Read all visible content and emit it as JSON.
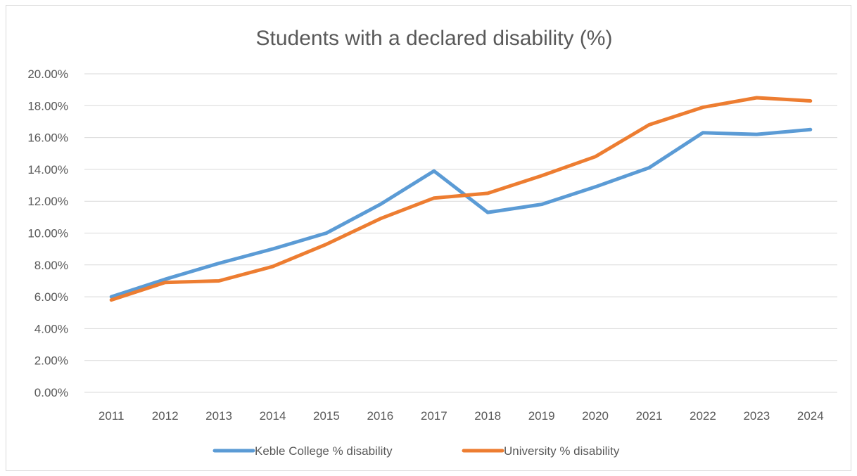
{
  "chart_data": {
    "type": "line",
    "title": "Students with a declared disability (%)",
    "xlabel": "",
    "ylabel": "",
    "categories": [
      "2011",
      "2012",
      "2013",
      "2014",
      "2015",
      "2016",
      "2017",
      "2018",
      "2019",
      "2020",
      "2021",
      "2022",
      "2023",
      "2024"
    ],
    "ylim": [
      0,
      20
    ],
    "yticks": [
      "0.00%",
      "2.00%",
      "4.00%",
      "6.00%",
      "8.00%",
      "10.00%",
      "12.00%",
      "14.00%",
      "16.00%",
      "18.00%",
      "20.00%"
    ],
    "grid": true,
    "legend_position": "bottom",
    "series": [
      {
        "name": "Keble College % disability",
        "color": "#5b9bd5",
        "values": [
          6.0,
          7.1,
          8.1,
          9.0,
          10.0,
          11.8,
          13.9,
          11.3,
          11.8,
          12.9,
          14.1,
          16.3,
          16.2,
          16.5
        ]
      },
      {
        "name": "University % disability",
        "color": "#ed7d31",
        "values": [
          5.8,
          6.9,
          7.0,
          7.9,
          9.3,
          10.9,
          12.2,
          12.5,
          13.6,
          14.8,
          16.8,
          17.9,
          18.5,
          18.3
        ]
      }
    ]
  }
}
